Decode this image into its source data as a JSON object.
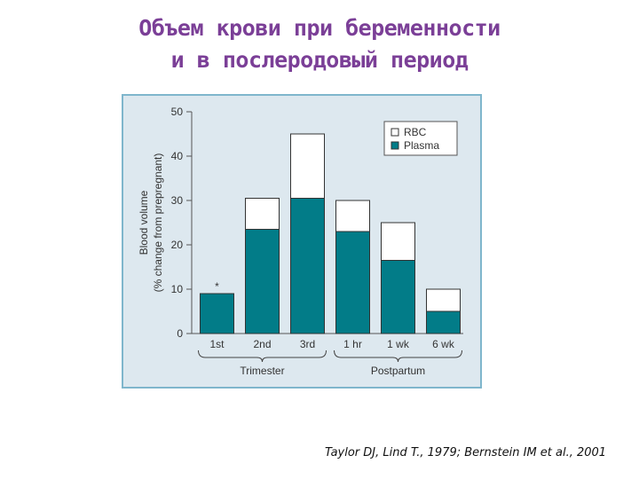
{
  "slide": {
    "title_line1": "Объем крови при беременности",
    "title_line2": "и в послеродовый период",
    "citation": "Taylor DJ, Lind T., 1979; Bernstein IM et al., 2001"
  },
  "colors": {
    "panel_background": "#dde8ef",
    "panel_border": "#7fb6cc",
    "plasma": "#027c88",
    "rbc": "#ffffff",
    "title": "#7b3f97"
  },
  "chart_data": {
    "type": "bar",
    "stacked": true,
    "categories": [
      "1st",
      "2nd",
      "3rd",
      "1 hr",
      "1 wk",
      "6 wk"
    ],
    "groups": [
      {
        "label": "Trimester",
        "categories": [
          "1st",
          "2nd",
          "3rd"
        ]
      },
      {
        "label": "Postpartum",
        "categories": [
          "1 hr",
          "1 wk",
          "6 wk"
        ]
      }
    ],
    "series": [
      {
        "name": "Plasma",
        "color": "#027c88",
        "values": [
          9,
          23.5,
          30.5,
          23,
          16.5,
          5
        ]
      },
      {
        "name": "RBC",
        "color": "#ffffff",
        "values": [
          0,
          7,
          14.5,
          7,
          8.5,
          5
        ]
      }
    ],
    "totals": [
      9,
      30.5,
      45,
      30,
      25,
      10
    ],
    "annotations": [
      {
        "category": "1st",
        "text": "*"
      }
    ],
    "ylabel_line1": "Blood volume",
    "ylabel_line2": "(% change from prepregnant)",
    "ylim": [
      0,
      50
    ],
    "yticks": [
      0,
      10,
      20,
      30,
      40,
      50
    ],
    "legend": {
      "position": "top-right",
      "items": [
        "RBC",
        "Plasma"
      ]
    },
    "grid": false
  }
}
